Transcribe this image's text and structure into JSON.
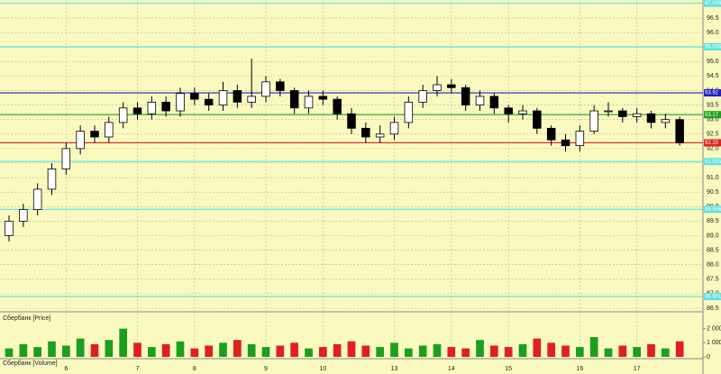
{
  "chart_data": {
    "type": "candlestick",
    "panel_labels": {
      "price": "Сбербанк [Price]",
      "volume": "Сбербанк [Volume]"
    },
    "categories": [
      null,
      null,
      null,
      null,
      "6",
      null,
      null,
      null,
      null,
      "7",
      null,
      null,
      null,
      "8",
      null,
      null,
      null,
      null,
      "9",
      null,
      null,
      null,
      "10",
      null,
      null,
      null,
      null,
      "13",
      null,
      null,
      null,
      "14",
      null,
      null,
      null,
      "15",
      null,
      null,
      null,
      null,
      "16",
      null,
      null,
      null,
      "17",
      null,
      null,
      null
    ],
    "open": [
      89.0,
      89.5,
      89.9,
      90.6,
      91.3,
      92.0,
      92.6,
      92.4,
      92.9,
      93.4,
      93.2,
      93.6,
      93.3,
      93.9,
      93.7,
      93.5,
      94.0,
      93.6,
      93.8,
      94.3,
      94.0,
      93.4,
      93.8,
      93.7,
      93.2,
      92.7,
      92.4,
      92.5,
      92.9,
      93.6,
      94.0,
      94.2,
      94.1,
      93.5,
      93.8,
      93.4,
      93.2,
      93.3,
      92.7,
      92.3,
      92.1,
      92.6,
      93.3,
      93.3,
      93.1,
      93.2,
      92.9,
      93.0
    ],
    "high": [
      89.7,
      90.1,
      90.8,
      91.5,
      92.2,
      92.8,
      92.8,
      93.1,
      93.6,
      93.6,
      93.8,
      93.8,
      94.1,
      94.1,
      93.9,
      94.3,
      94.2,
      95.1,
      94.5,
      94.4,
      94.1,
      94.0,
      94.0,
      93.8,
      93.4,
      92.9,
      92.8,
      93.1,
      93.8,
      94.2,
      94.5,
      94.4,
      94.2,
      94.0,
      93.9,
      93.5,
      93.5,
      93.4,
      92.8,
      92.5,
      92.8,
      93.5,
      93.6,
      93.4,
      93.4,
      93.3,
      93.2,
      93.1
    ],
    "low": [
      88.8,
      89.3,
      89.7,
      90.4,
      91.1,
      91.8,
      92.2,
      92.2,
      92.7,
      93.0,
      93.0,
      93.1,
      93.1,
      93.5,
      93.3,
      93.3,
      93.4,
      93.4,
      93.6,
      93.8,
      93.2,
      93.2,
      93.5,
      93.0,
      92.5,
      92.2,
      92.2,
      92.3,
      92.7,
      93.4,
      93.8,
      93.9,
      93.3,
      93.3,
      93.2,
      92.9,
      93.0,
      92.5,
      92.1,
      91.9,
      91.9,
      92.5,
      93.1,
      92.9,
      92.9,
      92.7,
      92.7,
      92.1
    ],
    "close": [
      89.5,
      89.9,
      90.6,
      91.3,
      92.0,
      92.6,
      92.4,
      92.9,
      93.4,
      93.2,
      93.6,
      93.3,
      93.9,
      93.7,
      93.5,
      94.0,
      93.6,
      93.8,
      94.3,
      94.0,
      93.4,
      93.8,
      93.7,
      93.2,
      92.7,
      92.4,
      92.5,
      92.9,
      93.6,
      94.0,
      94.2,
      94.1,
      93.5,
      93.8,
      93.4,
      93.2,
      93.3,
      92.7,
      92.3,
      92.1,
      92.6,
      93.3,
      93.3,
      93.1,
      93.2,
      92.9,
      93.0,
      92.2
    ],
    "volume": [
      600,
      900,
      700,
      1100,
      800,
      1300,
      900,
      1200,
      2000,
      1000,
      700,
      900,
      1100,
      600,
      800,
      1000,
      1200,
      900,
      700,
      800,
      1000,
      600,
      700,
      900,
      1100,
      800,
      700,
      1000,
      600,
      800,
      900,
      700,
      600,
      1200,
      800,
      700,
      900,
      1300,
      1000,
      800,
      700,
      1400,
      600,
      800,
      700,
      900,
      600,
      1100
    ],
    "up_color": "#1e9e1e",
    "down_color": "#e02020",
    "ylim": [
      86.5,
      97.12
    ],
    "yticks": [
      86.5,
      {
        "value": 87,
        "label": "87.0"
      },
      87.5,
      {
        "value": 88,
        "label": "88.0"
      },
      88.5,
      {
        "value": 89,
        "label": "89.0"
      },
      89.5,
      {
        "value": 90,
        "label": "90.0"
      },
      90.5,
      {
        "value": 91,
        "label": "91.0"
      },
      91.5,
      {
        "value": 92,
        "label": "92.0"
      },
      92.5,
      {
        "value": 93,
        "label": "93.0"
      },
      93.5,
      {
        "value": 94,
        "label": "94.0"
      },
      94.5,
      {
        "value": 95,
        "label": "95.0"
      },
      95.5,
      {
        "value": 96,
        "label": "96.0"
      },
      96.5
    ],
    "levels": [
      {
        "value": 97.006,
        "label": "97.006",
        "color": "#5fe0e0"
      },
      {
        "value": 95.506,
        "label": "95.506",
        "color": "#5fe0e0"
      },
      {
        "value": 93.92,
        "label": "93.92",
        "color": "#2020c0"
      },
      {
        "value": 93.17,
        "label": "93.17",
        "color": "#20a020"
      },
      {
        "value": 92.2,
        "label": "92.20",
        "color": "#e02020"
      },
      {
        "value": 91.555,
        "label": "91.555",
        "color": "#5fe0e0"
      },
      {
        "value": 89.906,
        "label": "89.906",
        "color": "#5fe0e0"
      },
      {
        "value": 86.901,
        "label": "86.901",
        "color": "#5fe0e0"
      }
    ],
    "vlim": [
      0,
      2300
    ],
    "vticks": [
      0,
      {
        "value": 1000,
        "label": "1 000"
      },
      {
        "value": 2000,
        "label": "2 000"
      }
    ],
    "grid": true
  }
}
